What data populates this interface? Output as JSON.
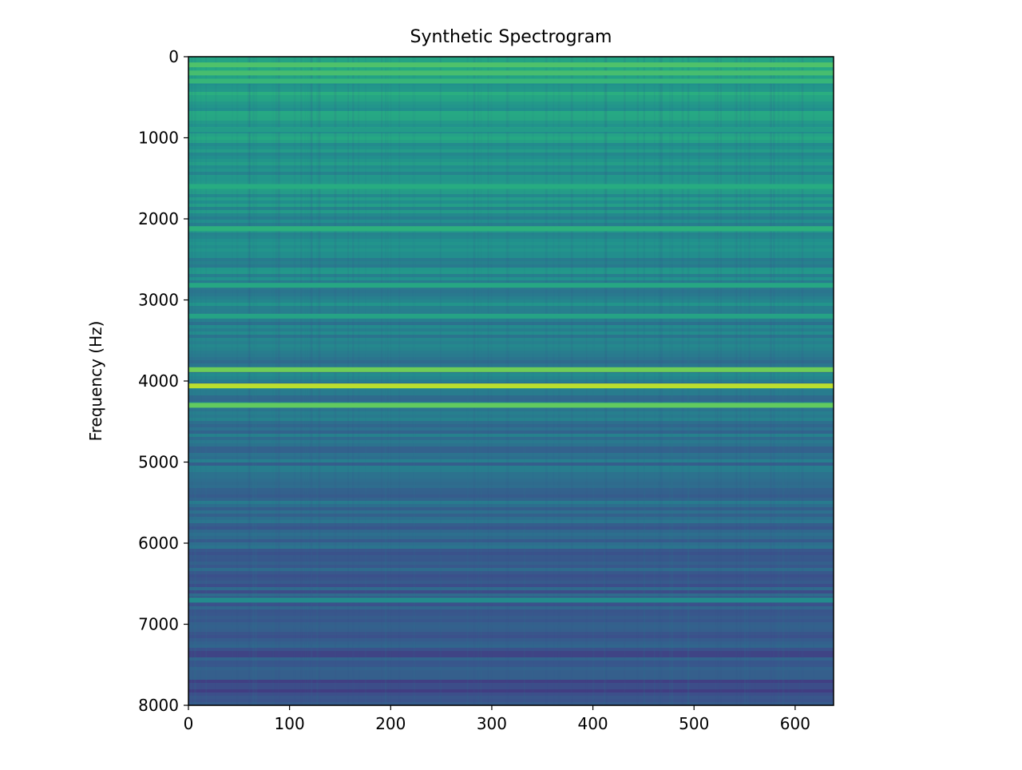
{
  "chart_data": {
    "type": "heatmap",
    "title": "Synthetic Spectrogram",
    "xlabel": "",
    "ylabel": "Frequency (Hz)",
    "xlim": [
      0,
      638
    ],
    "ylim": [
      8000,
      0
    ],
    "y_inverted": true,
    "grid": false,
    "legend": "none",
    "colormap": "viridis",
    "x_ticks": [
      0,
      100,
      200,
      300,
      400,
      500,
      600
    ],
    "y_ticks": [
      0,
      1000,
      2000,
      3000,
      4000,
      5000,
      6000,
      7000,
      8000
    ],
    "bands": [
      {
        "freq_hz": 100,
        "intensity": 0.72
      },
      {
        "freq_hz": 200,
        "intensity": 0.7
      },
      {
        "freq_hz": 300,
        "intensity": 0.66
      },
      {
        "freq_hz": 900,
        "intensity": 0.55
      },
      {
        "freq_hz": 1600,
        "intensity": 0.62
      },
      {
        "freq_hz": 2120,
        "intensity": 0.64
      },
      {
        "freq_hz": 2820,
        "intensity": 0.6
      },
      {
        "freq_hz": 3200,
        "intensity": 0.58
      },
      {
        "freq_hz": 3860,
        "intensity": 0.78
      },
      {
        "freq_hz": 4060,
        "intensity": 0.9
      },
      {
        "freq_hz": 4300,
        "intensity": 0.76
      },
      {
        "freq_hz": 6700,
        "intensity": 0.48
      }
    ]
  }
}
